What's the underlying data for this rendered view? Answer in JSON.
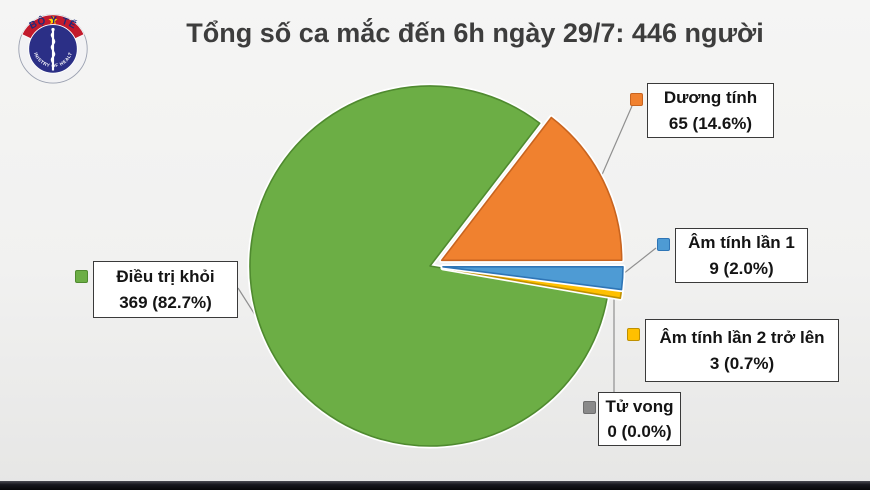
{
  "title": "Tổng số ca mắc đến 6h ngày 29/7: 446 người",
  "logo": {
    "top_text": "BỘ Y TẾ",
    "bottom_text": "MINISTRY OF HEALTH",
    "colors": {
      "ring": "#f2f2f4",
      "band_red": "#c21a2c",
      "star_yellow": "#ffd400",
      "disc_navy": "#2b2f86",
      "text_navy": "#1f2a7a"
    }
  },
  "chart_data": {
    "type": "pie",
    "title": "Tổng số ca mắc đến 6h ngày 29/7: 446 người",
    "total": 446,
    "unit": "người",
    "start_angle_deg": 37.53,
    "legend_position": "callout-labels",
    "slices": [
      {
        "id": "duong-tinh",
        "label": "Dương tính",
        "value": 65,
        "pct": "14.6%",
        "display": "65 (14.6%)",
        "color": "#F0812F",
        "edge": "#C8641F",
        "exploded": true
      },
      {
        "id": "am-tinh-lan-1",
        "label": "Âm tính lần 1",
        "value": 9,
        "pct": "2.0%",
        "display": "9 (2.0%)",
        "color": "#4E9BD4",
        "edge": "#2E75B6",
        "exploded": true
      },
      {
        "id": "am-tinh-lan-2",
        "label": "Âm tính lần 2 trở lên",
        "value": 3,
        "pct": "0.7%",
        "display": "3 (0.7%)",
        "color": "#FFC000",
        "edge": "#BF9000",
        "exploded": true
      },
      {
        "id": "tu-vong",
        "label": "Tử vong",
        "value": 0,
        "pct": "0.0%",
        "display": "0 (0.0%)",
        "color": "#8A8A8A",
        "edge": "#6E6E6E",
        "exploded": false
      },
      {
        "id": "dieu-tri-khoi",
        "label": "Điều trị khỏi",
        "value": 369,
        "pct": "82.7%",
        "display": "369 (82.7%)",
        "color": "#6CAE45",
        "edge": "#4F8A2F",
        "exploded": false
      }
    ]
  }
}
